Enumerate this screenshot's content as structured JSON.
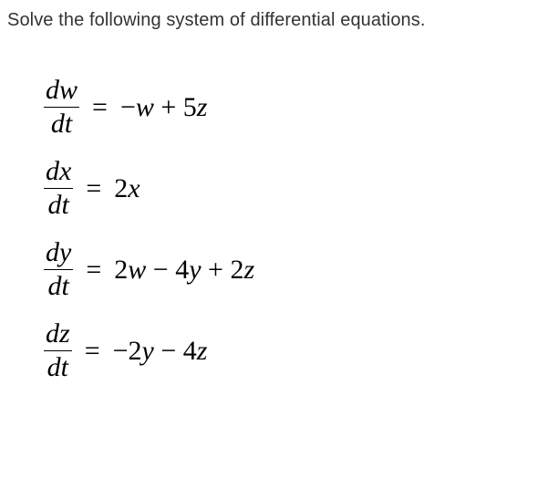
{
  "instruction": "Solve the following system of differential equations.",
  "equations": [
    {
      "lhs_num": "dw",
      "lhs_den": "dt",
      "rhs_html": "<span class='op'>−</span>w <span class='op'>+</span> <span class='num'>5</span>z"
    },
    {
      "lhs_num": "dx",
      "lhs_den": "dt",
      "rhs_html": "<span class='num'>2</span>x"
    },
    {
      "lhs_num": "dy",
      "lhs_den": "dt",
      "rhs_html": "<span class='num'>2</span>w <span class='op'>−</span> <span class='num'>4</span>y <span class='op'>+</span> <span class='num'>2</span>z"
    },
    {
      "lhs_num": "dz",
      "lhs_den": "dt",
      "rhs_html": "<span class='op'>−</span><span class='num'>2</span>y <span class='op'>−</span> <span class='num'>4</span>z"
    }
  ],
  "styling": {
    "instruction_fontsize": 20,
    "instruction_color": "#333333",
    "equation_fontsize": 30,
    "equation_color": "#000000",
    "equation_font": "Times New Roman",
    "background_color": "#ffffff",
    "fraction_bar_color": "#000000",
    "fraction_bar_width": 1.5
  }
}
